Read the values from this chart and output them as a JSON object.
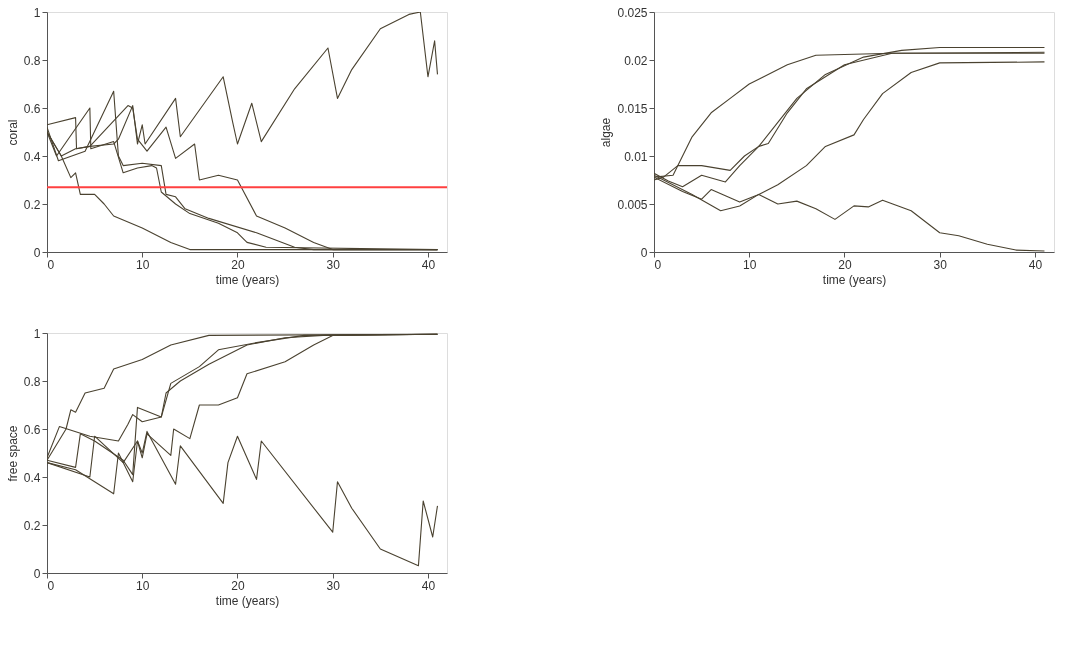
{
  "chart_data": [
    {
      "type": "line",
      "xlabel": "time (years)",
      "ylabel": "coral",
      "xlim": [
        0,
        42
      ],
      "ylim": [
        0,
        1
      ],
      "xticks": [
        0,
        10,
        20,
        30,
        40
      ],
      "yticks": [
        0,
        0.2,
        0.4,
        0.6,
        0.8,
        1
      ],
      "grid": false,
      "legend": false,
      "marker": "none",
      "line_style": "solid",
      "ref_lines": [
        {
          "axis": "y",
          "value": 0.27,
          "label": null,
          "color": "#ff4040"
        }
      ],
      "series": [
        {
          "color": "#4a4230",
          "x": [
            0,
            1.5,
            3,
            4.5,
            7,
            7.5,
            9,
            9.5,
            10,
            10.3,
            13.5,
            14,
            18.5,
            19.5,
            20,
            21.5,
            22.5,
            26,
            29.5,
            30.5,
            32,
            35,
            38,
            39.2,
            40,
            40.7,
            41
          ],
          "values": [
            0.5,
            0.4,
            0.43,
            0.44,
            0.45,
            0.47,
            0.61,
            0.45,
            0.53,
            0.45,
            0.64,
            0.48,
            0.73,
            0.54,
            0.45,
            0.62,
            0.46,
            0.68,
            0.85,
            0.64,
            0.76,
            0.93,
            0.99,
            1.0,
            0.73,
            0.88,
            0.74
          ]
        },
        {
          "color": "#4a4230",
          "x": [
            0,
            3,
            3.1,
            4.5,
            8.5,
            9,
            9.5,
            10.5,
            12.5,
            13.5,
            15.5,
            16,
            18,
            20,
            22,
            25,
            28,
            30,
            41
          ],
          "values": [
            0.53,
            0.56,
            0.43,
            0.44,
            0.61,
            0.6,
            0.47,
            0.42,
            0.52,
            0.39,
            0.45,
            0.3,
            0.32,
            0.3,
            0.15,
            0.1,
            0.04,
            0.01,
            0.01
          ]
        },
        {
          "color": "#4a4230",
          "x": [
            0,
            1.2,
            4,
            7,
            7.5,
            8,
            10,
            12,
            12.5,
            13.5,
            14.5,
            17,
            22,
            26,
            28,
            41
          ],
          "values": [
            0.52,
            0.38,
            0.42,
            0.67,
            0.4,
            0.36,
            0.37,
            0.36,
            0.24,
            0.23,
            0.18,
            0.14,
            0.08,
            0.02,
            0.01,
            0.01
          ]
        },
        {
          "color": "#4a4230",
          "x": [
            0,
            1,
            4.5,
            4.6,
            7,
            8,
            9.5,
            11,
            11.5,
            12,
            13.5,
            15,
            18,
            20,
            21,
            23,
            41
          ],
          "values": [
            0.5,
            0.4,
            0.6,
            0.43,
            0.46,
            0.33,
            0.35,
            0.36,
            0.35,
            0.25,
            0.2,
            0.16,
            0.12,
            0.08,
            0.04,
            0.02,
            0.01
          ]
        },
        {
          "color": "#4a4230",
          "x": [
            0,
            1.5,
            2.5,
            3,
            3.5,
            5,
            6,
            7,
            10,
            13,
            15,
            41
          ],
          "values": [
            0.5,
            0.4,
            0.31,
            0.33,
            0.24,
            0.24,
            0.2,
            0.15,
            0.1,
            0.04,
            0.01,
            0.01
          ]
        }
      ]
    },
    {
      "type": "line",
      "xlabel": "time (years)",
      "ylabel": "algae",
      "xlim": [
        0,
        42
      ],
      "ylim": [
        0,
        0.025
      ],
      "xticks": [
        0,
        10,
        20,
        30,
        40
      ],
      "yticks": [
        0,
        0.005,
        0.01,
        0.015,
        0.02,
        0.025
      ],
      "grid": false,
      "legend": false,
      "marker": "none",
      "line_style": "solid",
      "series": [
        {
          "color": "#4a4230",
          "x": [
            0,
            2,
            4,
            6,
            8,
            10,
            14,
            17,
            25,
            41
          ],
          "values": [
            0.0078,
            0.008,
            0.012,
            0.0145,
            0.016,
            0.0175,
            0.0195,
            0.0205,
            0.0207,
            0.0207
          ]
        },
        {
          "color": "#4a4230",
          "x": [
            0,
            1,
            2.5,
            5,
            8,
            9.5,
            11,
            12,
            14,
            16,
            20,
            25,
            41
          ],
          "values": [
            0.0075,
            0.0078,
            0.009,
            0.009,
            0.0085,
            0.01,
            0.011,
            0.0113,
            0.0145,
            0.017,
            0.0195,
            0.0207,
            0.0208
          ]
        },
        {
          "color": "#4a4230",
          "x": [
            0,
            1.5,
            3,
            5,
            7.5,
            9,
            11,
            13,
            15,
            18,
            22,
            26,
            30,
            41
          ],
          "values": [
            0.0082,
            0.0074,
            0.0068,
            0.008,
            0.0073,
            0.009,
            0.011,
            0.0135,
            0.016,
            0.0185,
            0.0203,
            0.021,
            0.0213,
            0.0213
          ]
        },
        {
          "color": "#4a4230",
          "x": [
            0,
            4,
            7,
            9,
            11,
            13,
            16,
            18,
            21,
            22,
            24,
            27,
            30,
            41
          ],
          "values": [
            0.008,
            0.006,
            0.0043,
            0.0048,
            0.006,
            0.007,
            0.009,
            0.011,
            0.0122,
            0.0138,
            0.0165,
            0.0187,
            0.0197,
            0.0198
          ]
        },
        {
          "color": "#4a4230",
          "x": [
            0,
            3,
            5,
            6,
            9,
            11,
            13,
            15,
            17,
            19,
            21,
            22.5,
            24,
            27,
            30,
            32,
            35,
            38,
            41
          ],
          "values": [
            0.0078,
            0.0063,
            0.0055,
            0.0065,
            0.0052,
            0.006,
            0.005,
            0.0053,
            0.0045,
            0.0034,
            0.0048,
            0.0047,
            0.0054,
            0.0043,
            0.002,
            0.0017,
            0.0008,
            0.0002,
            0.0001
          ]
        }
      ]
    },
    {
      "type": "line",
      "xlabel": "time (years)",
      "ylabel": "free space",
      "xlim": [
        0,
        42
      ],
      "ylim": [
        0,
        1
      ],
      "xticks": [
        0,
        10,
        20,
        30,
        40
      ],
      "yticks": [
        0,
        0.2,
        0.4,
        0.6,
        0.8,
        1
      ],
      "grid": false,
      "legend": false,
      "marker": "none",
      "line_style": "solid",
      "series": [
        {
          "color": "#4a4230",
          "x": [
            0,
            2,
            2.5,
            3,
            4,
            6,
            7,
            10,
            13,
            17,
            41
          ],
          "values": [
            0.47,
            0.6,
            0.68,
            0.67,
            0.75,
            0.77,
            0.85,
            0.89,
            0.95,
            0.99,
            0.995
          ]
        },
        {
          "color": "#4a4230",
          "x": [
            0,
            1.3,
            4.5,
            7.5,
            8.5,
            9,
            10,
            12,
            12.5,
            14,
            17,
            21,
            25,
            29,
            41
          ],
          "values": [
            0.48,
            0.61,
            0.57,
            0.55,
            0.62,
            0.66,
            0.63,
            0.65,
            0.75,
            0.8,
            0.87,
            0.95,
            0.98,
            0.99,
            0.995
          ]
        },
        {
          "color": "#4a4230",
          "x": [
            0,
            3,
            3.5,
            5,
            8,
            9,
            9.5,
            12,
            13,
            16,
            18,
            22,
            27,
            41
          ],
          "values": [
            0.47,
            0.44,
            0.58,
            0.55,
            0.47,
            0.41,
            0.69,
            0.65,
            0.79,
            0.86,
            0.93,
            0.96,
            0.99,
            0.995
          ]
        },
        {
          "color": "#4a4230",
          "x": [
            0,
            4.5,
            5,
            8,
            9.5,
            10,
            10.5,
            13,
            13.3,
            15,
            16,
            18,
            20,
            21,
            25,
            28,
            30,
            41
          ],
          "values": [
            0.46,
            0.4,
            0.57,
            0.46,
            0.55,
            0.48,
            0.58,
            0.49,
            0.6,
            0.56,
            0.7,
            0.7,
            0.73,
            0.83,
            0.88,
            0.95,
            0.99,
            0.995
          ]
        },
        {
          "color": "#4a4230",
          "x": [
            0,
            3,
            7,
            7.5,
            9,
            9.5,
            10,
            10.5,
            13.5,
            14,
            18.5,
            19,
            20,
            22,
            22.5,
            30,
            30.5,
            32,
            35,
            39,
            39.5,
            40.5,
            41
          ],
          "values": [
            0.46,
            0.43,
            0.33,
            0.5,
            0.38,
            0.55,
            0.5,
            0.59,
            0.37,
            0.53,
            0.29,
            0.46,
            0.57,
            0.39,
            0.55,
            0.17,
            0.38,
            0.27,
            0.1,
            0.03,
            0.3,
            0.15,
            0.28
          ]
        }
      ]
    }
  ]
}
